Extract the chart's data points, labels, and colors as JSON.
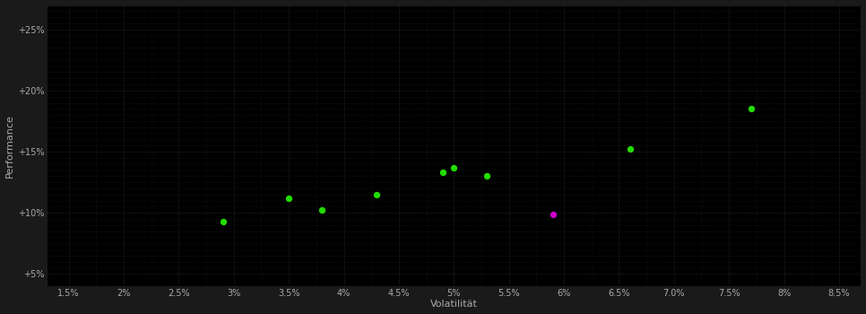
{
  "background_color": "#1a1a1a",
  "plot_bg_color": "#000000",
  "grid_color": "#3a3a3a",
  "grid_linestyle": ":",
  "xlabel": "Volatilität",
  "ylabel": "Performance",
  "xlabel_color": "#aaaaaa",
  "ylabel_color": "#aaaaaa",
  "tick_color": "#aaaaaa",
  "xlim": [
    0.013,
    0.087
  ],
  "ylim": [
    0.04,
    0.27
  ],
  "xticks": [
    0.015,
    0.02,
    0.025,
    0.03,
    0.035,
    0.04,
    0.045,
    0.05,
    0.055,
    0.06,
    0.065,
    0.07,
    0.075,
    0.08,
    0.085
  ],
  "yticks": [
    0.05,
    0.1,
    0.15,
    0.2,
    0.25
  ],
  "minor_xticks": [
    0.0175,
    0.0225,
    0.0275,
    0.0325,
    0.0375,
    0.0425,
    0.0475,
    0.0525,
    0.0575,
    0.0625,
    0.0675,
    0.0725,
    0.0775,
    0.0825
  ],
  "minor_yticks": [
    0.055,
    0.06,
    0.065,
    0.07,
    0.075,
    0.08,
    0.085,
    0.09,
    0.095,
    0.105,
    0.11,
    0.115,
    0.12,
    0.125,
    0.13,
    0.135,
    0.14,
    0.145,
    0.155,
    0.16,
    0.165,
    0.17,
    0.175,
    0.18,
    0.185,
    0.19,
    0.195,
    0.205,
    0.21,
    0.215,
    0.22,
    0.225,
    0.23,
    0.235,
    0.24,
    0.245,
    0.255,
    0.26,
    0.265
  ],
  "points_green": [
    [
      0.029,
      0.093
    ],
    [
      0.035,
      0.112
    ],
    [
      0.038,
      0.102
    ],
    [
      0.043,
      0.115
    ],
    [
      0.049,
      0.133
    ],
    [
      0.05,
      0.137
    ],
    [
      0.053,
      0.13
    ],
    [
      0.066,
      0.152
    ],
    [
      0.077,
      0.185
    ]
  ],
  "points_magenta": [
    [
      0.059,
      0.099
    ]
  ],
  "green_color": "#22dd00",
  "magenta_color": "#cc00cc",
  "marker_size": 28
}
